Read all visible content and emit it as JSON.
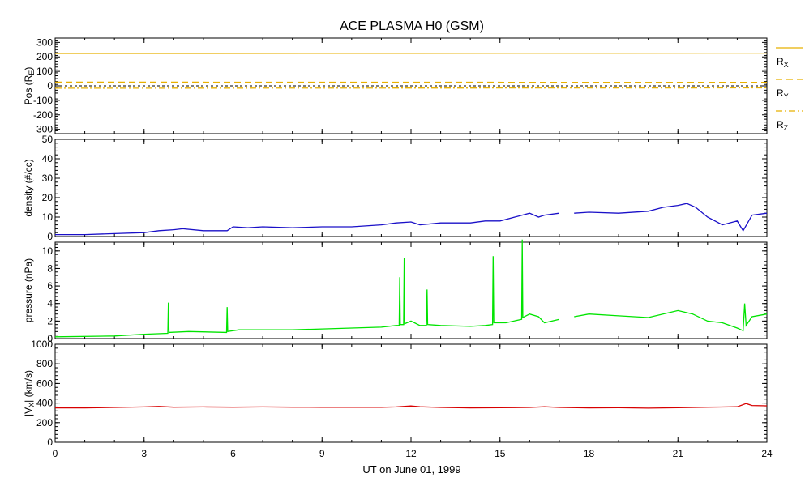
{
  "title": "ACE PLASMA H0 (GSM)",
  "xlabel": "UT on June 01, 1999",
  "colors": {
    "position": "#e8b000",
    "density": "#1a10c8",
    "pressure": "#00e400",
    "velocity": "#d80000",
    "axes": "#000000"
  },
  "chart_data": [
    {
      "type": "line",
      "panel": "position",
      "ylabel": "Pos (R",
      "ylabel_sub": "E",
      "ylabel_end": ")",
      "xlim": [
        0,
        24
      ],
      "ylim": [
        -330,
        330
      ],
      "yticks": [
        300,
        200,
        100,
        0,
        -100,
        -200,
        -300
      ],
      "xticks": [
        0,
        3,
        6,
        9,
        12,
        15,
        18,
        21,
        24
      ],
      "zero_line": true,
      "series": [
        {
          "name": "R",
          "sub": "X",
          "style": "solid",
          "x": [
            0,
            24
          ],
          "values": [
            224,
            226
          ]
        },
        {
          "name": "R",
          "sub": "Y",
          "style": "dashed",
          "x": [
            0,
            24
          ],
          "values": [
            26,
            24
          ]
        },
        {
          "name": "R",
          "sub": "Z",
          "style": "dashdot",
          "x": [
            0,
            24
          ],
          "values": [
            -16,
            -14
          ]
        }
      ]
    },
    {
      "type": "line",
      "panel": "density",
      "ylabel": "density (#/cc)",
      "xlim": [
        0,
        24
      ],
      "ylim": [
        0,
        50
      ],
      "yticks": [
        0,
        10,
        20,
        30,
        40,
        50
      ],
      "xticks": [
        0,
        3,
        6,
        9,
        12,
        15,
        18,
        21,
        24
      ],
      "series": [
        {
          "x": [
            0,
            1,
            2,
            3,
            3.5,
            4,
            4.3,
            5,
            5.8,
            6,
            6.5,
            7,
            8,
            9,
            10,
            11,
            11.5,
            12,
            12.3,
            13,
            14,
            14.5,
            15,
            15.5,
            16,
            16.3,
            16.5,
            17,
            17.3,
            17.5,
            18,
            19,
            20,
            20.5,
            21,
            21.3,
            21.6,
            22,
            22.5,
            23,
            23.2,
            23.5,
            24
          ],
          "values": [
            1,
            1,
            1.5,
            2,
            3,
            3.5,
            4,
            3,
            3,
            5,
            4.5,
            5,
            4.5,
            5,
            5,
            6,
            7,
            7.5,
            6,
            7,
            7,
            8,
            8,
            10,
            12,
            10,
            11,
            12,
            null,
            12,
            12.5,
            12,
            13,
            15,
            16,
            17,
            15,
            10,
            6,
            8,
            3,
            11,
            12
          ]
        }
      ]
    },
    {
      "type": "line",
      "panel": "pressure",
      "ylabel": "pressure (nPa)",
      "xlim": [
        0,
        24
      ],
      "ylim": [
        0,
        11
      ],
      "yticks": [
        0,
        2,
        4,
        6,
        8,
        10
      ],
      "xticks": [
        0,
        3,
        6,
        9,
        12,
        15,
        18,
        21,
        24
      ],
      "series": [
        {
          "x": [
            0,
            2,
            3,
            3.8,
            3.82,
            3.84,
            4.5,
            5.78,
            5.8,
            5.82,
            6.2,
            8,
            9,
            10,
            11,
            11.5,
            11.6,
            11.62,
            11.64,
            11.75,
            11.77,
            11.79,
            12,
            12.3,
            12.52,
            12.54,
            12.56,
            13,
            14,
            14.5,
            14.75,
            14.77,
            14.79,
            15.2,
            15.73,
            15.75,
            15.77,
            16,
            16.3,
            16.5,
            17,
            17.3,
            17.5,
            18,
            19,
            20,
            21,
            21.5,
            22,
            22.5,
            23,
            23.2,
            23.25,
            23.3,
            23.5,
            24
          ],
          "values": [
            0.2,
            0.3,
            0.5,
            0.6,
            4.1,
            0.7,
            0.8,
            0.7,
            3.6,
            0.8,
            1.0,
            1.0,
            1.1,
            1.2,
            1.3,
            1.5,
            1.5,
            7.0,
            1.6,
            1.6,
            9.2,
            1.7,
            2.0,
            1.5,
            1.5,
            5.6,
            1.6,
            1.5,
            1.4,
            1.5,
            1.6,
            9.4,
            1.8,
            1.8,
            2.2,
            11.3,
            2.4,
            2.8,
            2.5,
            1.8,
            2.2,
            null,
            2.5,
            2.8,
            2.6,
            2.4,
            3.2,
            2.8,
            2.0,
            1.8,
            1.2,
            0.9,
            4.0,
            1.5,
            2.5,
            2.8
          ]
        }
      ]
    },
    {
      "type": "line",
      "panel": "velocity",
      "ylabel": "|V",
      "ylabel_sub": "X",
      "ylabel_end": "| (km/s)",
      "xlim": [
        0,
        24
      ],
      "ylim": [
        0,
        1000
      ],
      "yticks": [
        0,
        200,
        400,
        600,
        800,
        1000
      ],
      "xticks": [
        0,
        3,
        6,
        9,
        12,
        15,
        18,
        21,
        24
      ],
      "series": [
        {
          "x": [
            0,
            1,
            2,
            3,
            3.5,
            4,
            5,
            6,
            7,
            8,
            9,
            10,
            11,
            11.5,
            12,
            12.3,
            13,
            14,
            15,
            16,
            16.5,
            17,
            18,
            19,
            20,
            21,
            22,
            23,
            23.3,
            23.5,
            24
          ],
          "values": [
            350,
            350,
            355,
            360,
            365,
            358,
            360,
            358,
            360,
            358,
            357,
            356,
            357,
            360,
            370,
            362,
            355,
            350,
            352,
            355,
            362,
            355,
            350,
            352,
            348,
            352,
            358,
            362,
            395,
            375,
            372
          ]
        }
      ]
    }
  ]
}
